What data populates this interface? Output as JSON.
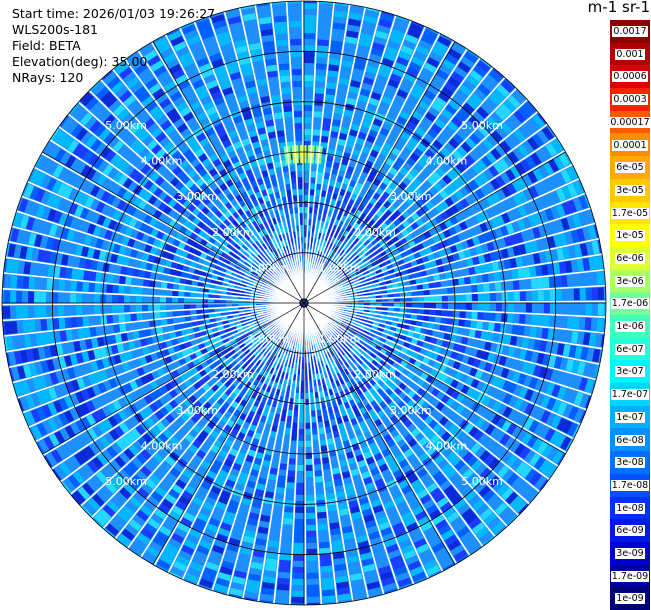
{
  "info": {
    "start_time": "Start time: 2026/01/03 19:26:27",
    "instrument": "WLS200s-181",
    "field": "Field: BETA",
    "elevation": "Elevation(deg): 35.00",
    "nrays": "NRays: 120"
  },
  "colorbar": {
    "unit_title": "m-1 sr-1",
    "ticks": [
      "0.0017",
      "0.001",
      "0.0006",
      "0.0003",
      "0.00017",
      "0.0001",
      "6e-05",
      "3e-05",
      "1.7e-05",
      "1e-05",
      "6e-06",
      "3e-06",
      "1.7e-06",
      "1e-06",
      "6e-07",
      "3e-07",
      "1.7e-07",
      "1e-07",
      "6e-08",
      "3e-08",
      "1.7e-08",
      "1e-08",
      "6e-09",
      "3e-09",
      "1.7e-09",
      "1e-09"
    ],
    "colors": [
      "#8b0000",
      "#b00000",
      "#d80000",
      "#ff2000",
      "#ff5a00",
      "#ff8c00",
      "#ffaa00",
      "#ffc800",
      "#ffe600",
      "#ffff00",
      "#ddff33",
      "#aaff66",
      "#77ff99",
      "#44ffbb",
      "#22ffdd",
      "#00f5ff",
      "#00d5ff",
      "#00b0ff",
      "#0090ff",
      "#0070ff",
      "#0050ff",
      "#0030ff",
      "#0018e8",
      "#0000cc",
      "#0000a0",
      "#000078"
    ]
  },
  "chart_data": {
    "type": "heatmap",
    "projection": "polar (PPI)",
    "field": "BETA",
    "elevation_deg": 35.0,
    "n_rays": 120,
    "range_rings_km": [
      1.0,
      2.0,
      3.0,
      4.0,
      5.0
    ],
    "ring_labels": [
      "1.00km",
      "2.00km",
      "3.00km",
      "4.00km",
      "5.00km"
    ],
    "max_range_km": 6.0,
    "color_scale": "logarithmic",
    "value_range": [
      1e-09,
      0.0017
    ],
    "dominant_values": [
      3e-08,
      1e-07
    ],
    "features": [
      {
        "azimuth_deg": 0,
        "range_km": 2.9,
        "value": 1e-05
      }
    ]
  }
}
